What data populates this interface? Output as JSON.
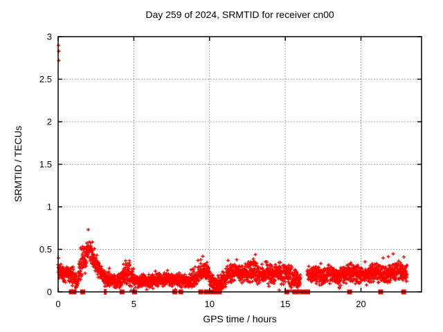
{
  "chart_data": {
    "type": "scatter",
    "title": "Day 259 of 2024, SRMTID for receiver cn00",
    "xlabel": "GPS time / hours",
    "ylabel": "SRMTID / TECUs",
    "xlim": [
      0,
      24
    ],
    "ylim": [
      0,
      3
    ],
    "xticks": [
      0,
      5,
      10,
      15,
      20
    ],
    "yticks": [
      0,
      0.5,
      1,
      1.5,
      2,
      2.5,
      3
    ],
    "grid": true,
    "legend": "none",
    "marker": "plus",
    "marker_color": "#ff0000",
    "grid_color": "#a2a2a2",
    "axis_color": "#000000",
    "background": "#ffffff",
    "start_hour": 0.0,
    "end_hour": 23.05,
    "samples_per_hour": 120,
    "seed": 20240259,
    "outlier_points": [
      [
        0.03,
        2.9
      ],
      [
        0.05,
        2.83
      ],
      [
        0.04,
        2.72
      ]
    ],
    "zero_square_hours": [
      0.87,
      1.05,
      1.62,
      4.22,
      5.05,
      7.7,
      8.1,
      9.42,
      9.78,
      10.1,
      10.3,
      10.5,
      10.65,
      15.1,
      15.62,
      15.76,
      16.1,
      16.22,
      16.34,
      16.48,
      19.25,
      21.3,
      22.82
    ],
    "zero_tick_hours": [
      3.07,
      3.16
    ],
    "data_gap_hours": [
      [
        16.0,
        16.45
      ]
    ],
    "band_profile": [
      [
        0.0,
        0.26,
        0.06
      ],
      [
        0.4,
        0.21,
        0.07
      ],
      [
        0.9,
        0.19,
        0.07
      ],
      [
        1.25,
        0.12,
        0.07
      ],
      [
        1.5,
        0.28,
        0.14
      ],
      [
        1.75,
        0.38,
        0.12
      ],
      [
        2.0,
        0.5,
        0.09
      ],
      [
        2.2,
        0.47,
        0.1
      ],
      [
        2.5,
        0.34,
        0.09
      ],
      [
        2.8,
        0.22,
        0.07
      ],
      [
        3.1,
        0.15,
        0.06
      ],
      [
        3.4,
        0.17,
        0.06
      ],
      [
        3.7,
        0.12,
        0.05
      ],
      [
        4.0,
        0.13,
        0.05
      ],
      [
        4.35,
        0.2,
        0.1
      ],
      [
        4.6,
        0.22,
        0.11
      ],
      [
        4.9,
        0.15,
        0.06
      ],
      [
        5.3,
        0.13,
        0.05
      ],
      [
        6.0,
        0.13,
        0.05
      ],
      [
        6.7,
        0.14,
        0.05
      ],
      [
        7.4,
        0.15,
        0.05
      ],
      [
        8.0,
        0.13,
        0.05
      ],
      [
        8.6,
        0.12,
        0.05
      ],
      [
        9.1,
        0.16,
        0.06
      ],
      [
        9.5,
        0.26,
        0.07
      ],
      [
        9.8,
        0.27,
        0.07
      ],
      [
        10.1,
        0.15,
        0.07
      ],
      [
        10.4,
        0.08,
        0.05
      ],
      [
        10.8,
        0.12,
        0.06
      ],
      [
        11.2,
        0.2,
        0.07
      ],
      [
        11.6,
        0.24,
        0.07
      ],
      [
        12.0,
        0.2,
        0.07
      ],
      [
        12.4,
        0.23,
        0.08
      ],
      [
        12.9,
        0.26,
        0.09
      ],
      [
        13.3,
        0.2,
        0.07
      ],
      [
        13.7,
        0.24,
        0.08
      ],
      [
        14.1,
        0.2,
        0.07
      ],
      [
        14.5,
        0.22,
        0.08
      ],
      [
        15.0,
        0.22,
        0.09
      ],
      [
        15.4,
        0.19,
        0.09
      ],
      [
        15.9,
        0.12,
        0.07
      ],
      [
        16.5,
        0.2,
        0.07
      ],
      [
        17.0,
        0.21,
        0.07
      ],
      [
        17.5,
        0.18,
        0.07
      ],
      [
        18.0,
        0.22,
        0.07
      ],
      [
        18.4,
        0.16,
        0.07
      ],
      [
        18.9,
        0.21,
        0.07
      ],
      [
        19.4,
        0.22,
        0.07
      ],
      [
        19.9,
        0.2,
        0.07
      ],
      [
        20.4,
        0.21,
        0.07
      ],
      [
        20.9,
        0.24,
        0.07
      ],
      [
        21.4,
        0.2,
        0.07
      ],
      [
        21.9,
        0.22,
        0.07
      ],
      [
        22.4,
        0.26,
        0.07
      ],
      [
        22.7,
        0.24,
        0.07
      ],
      [
        23.05,
        0.22,
        0.07
      ]
    ]
  }
}
